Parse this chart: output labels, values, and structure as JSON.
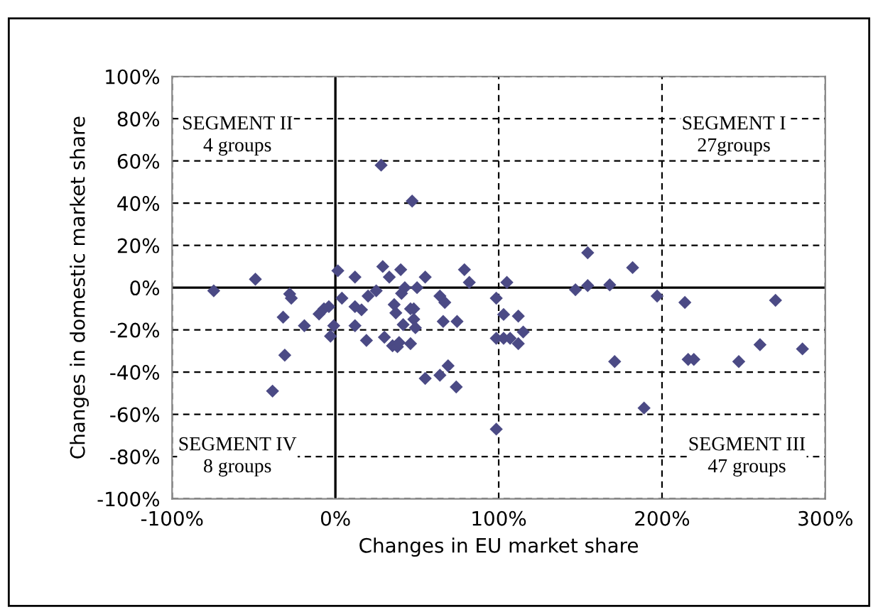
{
  "chart_data": {
    "type": "scatter",
    "xlabel": "Changes in EU market share",
    "ylabel": "Changes in domestic market share",
    "annotations": [
      "SEGMENT II\n4 groups",
      "SEGMENT I\n27groups",
      "SEGMENT IV\n8 groups",
      "SEGMENT III\n47 groups"
    ],
    "series": [
      {
        "color": "#4b4a85",
        "x": [
          -74.5,
          -49,
          -28,
          -27,
          -32,
          -31,
          -38.5,
          -19,
          -10,
          -7,
          -4,
          -1,
          -3,
          1.5,
          4,
          12,
          12,
          12,
          16,
          19,
          20,
          25,
          29,
          33,
          40,
          30,
          36,
          37,
          35,
          38,
          39,
          41.5,
          42.5,
          40.5,
          46,
          48,
          48,
          49,
          46,
          50,
          55,
          64,
          67,
          66,
          74.5,
          55,
          64,
          69,
          74,
          79,
          82,
          98.5,
          105,
          103,
          112,
          115,
          98.5,
          103,
          107,
          112,
          98.5,
          147,
          154.5,
          154.5,
          168,
          182,
          197,
          214,
          269.5,
          171,
          189,
          216,
          219.5,
          247,
          260,
          286,
          28,
          47
        ],
        "values": [
          -1.5,
          4,
          -3,
          -5,
          -14,
          -32,
          -49,
          -18,
          -12.5,
          -10,
          -9,
          -18,
          -23,
          8,
          -5,
          5,
          -18,
          -9,
          -10.5,
          -25,
          -4,
          -1.5,
          10,
          5,
          8.5,
          -23.5,
          -8,
          -12,
          -27.5,
          -28,
          -26,
          -17.5,
          0,
          -2.7,
          -10,
          -10,
          -15,
          -19,
          -26.5,
          0,
          5,
          -4,
          -7,
          -16,
          -16,
          -43,
          -41.5,
          -37,
          -47,
          8.5,
          2.5,
          -5,
          2.5,
          -12.7,
          -13.5,
          -21,
          -24,
          -24,
          -24,
          -26.5,
          -67,
          -1,
          1,
          16.5,
          1.3,
          9.5,
          -4,
          -7,
          -6,
          -35,
          -57,
          -34,
          -34,
          -35,
          -27,
          -29,
          58,
          41
        ]
      }
    ],
    "xlim": [
      -100,
      300
    ],
    "xticks": [
      {
        "value": -100,
        "label": "-100%"
      },
      {
        "value": 0,
        "label": "0%"
      },
      {
        "value": 100,
        "label": "100%"
      },
      {
        "value": 200,
        "label": "200%"
      },
      {
        "value": 300,
        "label": "300%"
      }
    ],
    "ylim": [
      -100,
      100
    ],
    "yticks": [
      {
        "value": -100,
        "label": "-100%"
      },
      {
        "value": -80,
        "label": "-80%"
      },
      {
        "value": -60,
        "label": "-60%"
      },
      {
        "value": -40,
        "label": "-40%"
      },
      {
        "value": -20,
        "label": "-20%"
      },
      {
        "value": 0,
        "label": "0%"
      },
      {
        "value": 20,
        "label": "20%"
      },
      {
        "value": 40,
        "label": "40%"
      },
      {
        "value": 60,
        "label": "60%"
      },
      {
        "value": 80,
        "label": "80%"
      },
      {
        "value": 100,
        "label": "100%"
      }
    ],
    "grid": true,
    "marker": "diamond"
  }
}
